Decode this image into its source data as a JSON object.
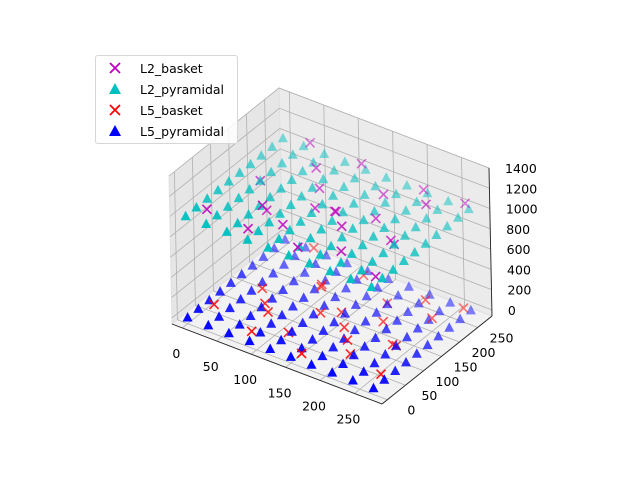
{
  "chart_data": {
    "type": "scatter3d",
    "title": "",
    "xlabel": "",
    "ylabel": "",
    "zlabel": "",
    "xlim": [
      -15,
      290
    ],
    "ylim": [
      -15,
      290
    ],
    "zlim": [
      -60,
      1400
    ],
    "x_ticks": [
      "0",
      "50",
      "100",
      "150",
      "200",
      "250"
    ],
    "y_ticks": [
      "0",
      "50",
      "100",
      "150",
      "200",
      "250"
    ],
    "z_ticks": [
      "0",
      "200",
      "400",
      "600",
      "800",
      "1000",
      "1200",
      "1400"
    ],
    "grid": true,
    "legend_position": "top-left",
    "series": [
      {
        "name": "L2_basket",
        "marker": "x",
        "color": "#bf00bf",
        "z_mean": 1000,
        "points": [
          [
            10,
            40,
            979
          ],
          [
            30,
            150,
            1000
          ],
          [
            45,
            260,
            1100
          ],
          [
            60,
            110,
            900
          ],
          [
            75,
            30,
            985
          ],
          [
            80,
            210,
            1085
          ],
          [
            95,
            190,
            980
          ],
          [
            110,
            60,
            1030
          ],
          [
            125,
            250,
            1130
          ],
          [
            140,
            150,
            980
          ],
          [
            150,
            25,
            1010
          ],
          [
            165,
            100,
            1190
          ],
          [
            175,
            215,
            1055
          ],
          [
            190,
            165,
            1000
          ],
          [
            200,
            50,
            1030
          ],
          [
            215,
            250,
            1105
          ],
          [
            230,
            130,
            985
          ],
          [
            245,
            200,
            1180
          ],
          [
            255,
            40,
            950
          ],
          [
            270,
            260,
            1085
          ],
          [
            70,
            80,
            1060
          ],
          [
            120,
            130,
            1020
          ],
          [
            180,
            90,
            1110
          ],
          [
            240,
            120,
            1000
          ]
        ]
      },
      {
        "name": "L2_pyramidal",
        "marker": "^",
        "color": "#00bfbf",
        "z_mean": 1000,
        "grid_x": [
          0,
          30,
          60,
          90,
          120,
          150,
          180,
          210,
          240,
          270
        ],
        "grid_y": [
          0,
          30,
          60,
          90,
          120,
          150,
          180,
          210,
          240,
          270
        ],
        "z": 1000
      },
      {
        "name": "L5_basket",
        "marker": "x",
        "color": "#ff0000",
        "z_mean": 0,
        "points": [
          [
            15,
            45,
            40
          ],
          [
            35,
            140,
            -20
          ],
          [
            50,
            255,
            90
          ],
          [
            60,
            100,
            10
          ],
          [
            80,
            25,
            0
          ],
          [
            90,
            200,
            -10
          ],
          [
            100,
            180,
            50
          ],
          [
            115,
            60,
            -20
          ],
          [
            130,
            240,
            70
          ],
          [
            145,
            150,
            0
          ],
          [
            155,
            20,
            -10
          ],
          [
            170,
            110,
            30
          ],
          [
            180,
            210,
            10
          ],
          [
            195,
            170,
            -20
          ],
          [
            205,
            60,
            0
          ],
          [
            220,
            240,
            60
          ],
          [
            235,
            120,
            0
          ],
          [
            245,
            210,
            30
          ],
          [
            260,
            40,
            0
          ],
          [
            270,
            250,
            80
          ],
          [
            75,
            80,
            20
          ],
          [
            125,
            130,
            0
          ],
          [
            185,
            90,
            0
          ],
          [
            240,
            120,
            0
          ]
        ]
      },
      {
        "name": "L5_pyramidal",
        "marker": "^",
        "color": "#0000ff",
        "z_mean": 0,
        "grid_x": [
          0,
          30,
          60,
          90,
          120,
          150,
          180,
          210,
          240,
          270
        ],
        "grid_y": [
          0,
          30,
          60,
          90,
          120,
          150,
          180,
          210,
          240,
          270
        ],
        "z": 0
      }
    ]
  },
  "legend": {
    "items": [
      {
        "label": "L2_basket",
        "marker": "x",
        "color": "#bf00bf"
      },
      {
        "label": "L2_pyramidal",
        "marker": "^",
        "color": "#00bfbf"
      },
      {
        "label": "L5_basket",
        "marker": "x",
        "color": "#ff0000"
      },
      {
        "label": "L5_pyramidal",
        "marker": "^",
        "color": "#0000ff"
      }
    ]
  }
}
